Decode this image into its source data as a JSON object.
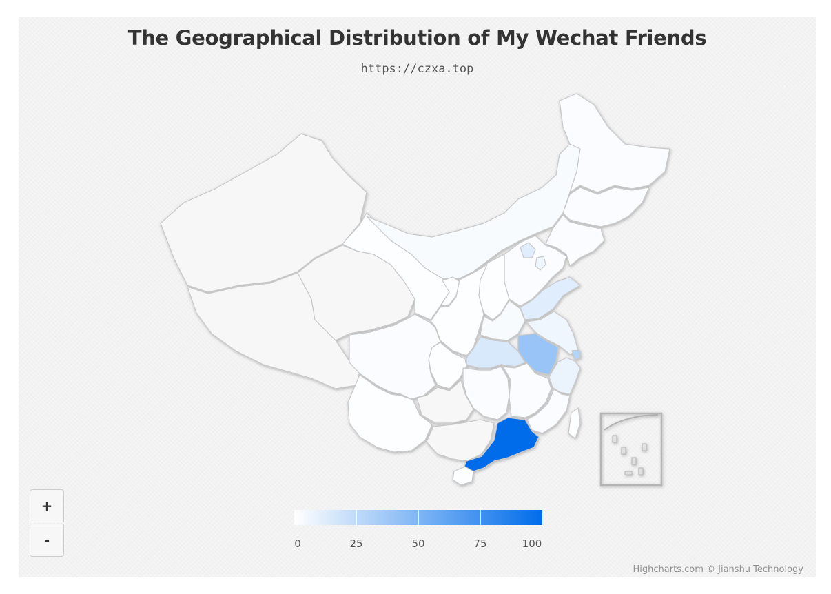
{
  "title": "The Geographical Distribution of My Wechat Friends",
  "subtitle": "https://czxa.top",
  "zoom": {
    "in_label": "+",
    "out_label": "-"
  },
  "colors": {
    "min": "#ffffff",
    "max": "#006cea",
    "no_data": "#f7f7f7",
    "border": "#c8c8c8"
  },
  "color_axis": {
    "min": 0,
    "max": 100,
    "ticks": [
      "0",
      "25",
      "50",
      "75",
      "100"
    ]
  },
  "map_data": {
    "type": "choropleth",
    "region": "China",
    "values": {
      "Guangdong": 100,
      "Anhui": 40,
      "Hubei": 15,
      "Shandong": 12,
      "Shanghai": 30,
      "Zhejiang": 8,
      "Jiangsu": 6,
      "Beijing": 12,
      "Tianjin": 6,
      "Henan": 3,
      "Hunan": 2,
      "Jiangxi": 2,
      "Fujian": 2,
      "Inner Mongolia": 3,
      "Heilongjiang": 2,
      "Jilin": 2,
      "Liaoning": 2,
      "Hebei": 2,
      "Shanxi": 1,
      "Shaanxi": 1,
      "Sichuan": 2,
      "Chongqing": 1,
      "Yunnan": 1,
      "Gansu": 1,
      "Ningxia": 1,
      "Hainan": 1,
      "Taiwan": 1
    },
    "no_data": [
      "Xinjiang",
      "Tibet",
      "Qinghai",
      "Guizhou",
      "Guangxi"
    ]
  },
  "credits": "Highcharts.com © Jianshu Technology"
}
